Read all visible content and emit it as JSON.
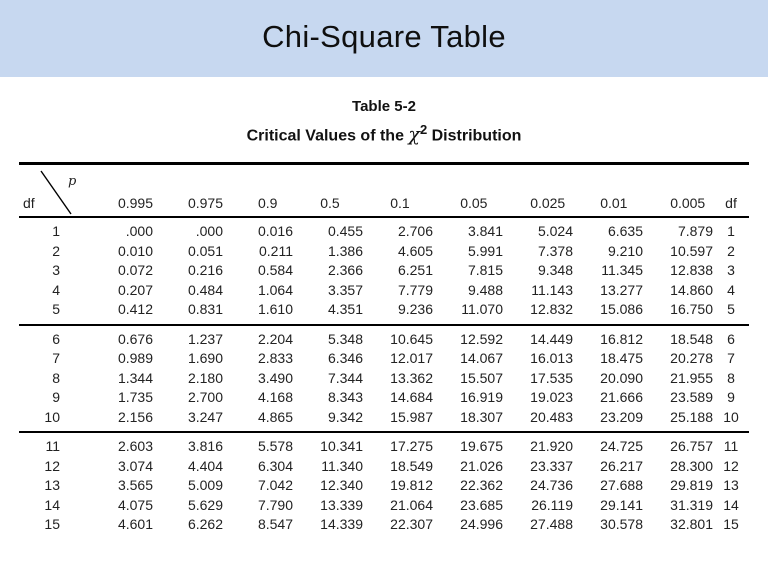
{
  "slide": {
    "title": "Chi-Square Table",
    "title_bar_color": "#c7d8f0",
    "background_color": "#ffffff"
  },
  "table": {
    "caption_line1": "Table 5-2",
    "caption_prefix": "Critical Values of the ",
    "caption_chi": "χ",
    "caption_sup": "2",
    "caption_suffix": " Distribution",
    "corner": {
      "row_label": "df",
      "col_label": "p"
    },
    "p_headers": [
      "0.995",
      "0.975",
      "0.9",
      "0.5",
      "0.1",
      "0.05",
      "0.025",
      "0.01",
      "0.005"
    ],
    "df_header_right": "df",
    "groups": [
      {
        "rows": [
          {
            "df": "1",
            "values": [
              ".000",
              ".000",
              "0.016",
              "0.455",
              "2.706",
              "3.841",
              "5.024",
              "6.635",
              "7.879"
            ]
          },
          {
            "df": "2",
            "values": [
              "0.010",
              "0.051",
              "0.211",
              "1.386",
              "4.605",
              "5.991",
              "7.378",
              "9.210",
              "10.597"
            ]
          },
          {
            "df": "3",
            "values": [
              "0.072",
              "0.216",
              "0.584",
              "2.366",
              "6.251",
              "7.815",
              "9.348",
              "11.345",
              "12.838"
            ]
          },
          {
            "df": "4",
            "values": [
              "0.207",
              "0.484",
              "1.064",
              "3.357",
              "7.779",
              "9.488",
              "11.143",
              "13.277",
              "14.860"
            ]
          },
          {
            "df": "5",
            "values": [
              "0.412",
              "0.831",
              "1.610",
              "4.351",
              "9.236",
              "11.070",
              "12.832",
              "15.086",
              "16.750"
            ]
          }
        ]
      },
      {
        "rows": [
          {
            "df": "6",
            "values": [
              "0.676",
              "1.237",
              "2.204",
              "5.348",
              "10.645",
              "12.592",
              "14.449",
              "16.812",
              "18.548"
            ]
          },
          {
            "df": "7",
            "values": [
              "0.989",
              "1.690",
              "2.833",
              "6.346",
              "12.017",
              "14.067",
              "16.013",
              "18.475",
              "20.278"
            ]
          },
          {
            "df": "8",
            "values": [
              "1.344",
              "2.180",
              "3.490",
              "7.344",
              "13.362",
              "15.507",
              "17.535",
              "20.090",
              "21.955"
            ]
          },
          {
            "df": "9",
            "values": [
              "1.735",
              "2.700",
              "4.168",
              "8.343",
              "14.684",
              "16.919",
              "19.023",
              "21.666",
              "23.589"
            ]
          },
          {
            "df": "10",
            "values": [
              "2.156",
              "3.247",
              "4.865",
              "9.342",
              "15.987",
              "18.307",
              "20.483",
              "23.209",
              "25.188"
            ]
          }
        ]
      },
      {
        "rows": [
          {
            "df": "11",
            "values": [
              "2.603",
              "3.816",
              "5.578",
              "10.341",
              "17.275",
              "19.675",
              "21.920",
              "24.725",
              "26.757"
            ]
          },
          {
            "df": "12",
            "values": [
              "3.074",
              "4.404",
              "6.304",
              "11.340",
              "18.549",
              "21.026",
              "23.337",
              "26.217",
              "28.300"
            ]
          },
          {
            "df": "13",
            "values": [
              "3.565",
              "5.009",
              "7.042",
              "12.340",
              "19.812",
              "22.362",
              "24.736",
              "27.688",
              "29.819"
            ]
          },
          {
            "df": "14",
            "values": [
              "4.075",
              "5.629",
              "7.790",
              "13.339",
              "21.064",
              "23.685",
              "26.119",
              "29.141",
              "31.319"
            ]
          },
          {
            "df": "15",
            "values": [
              "4.601",
              "6.262",
              "8.547",
              "14.339",
              "22.307",
              "24.996",
              "27.488",
              "30.578",
              "32.801"
            ]
          }
        ]
      }
    ]
  }
}
